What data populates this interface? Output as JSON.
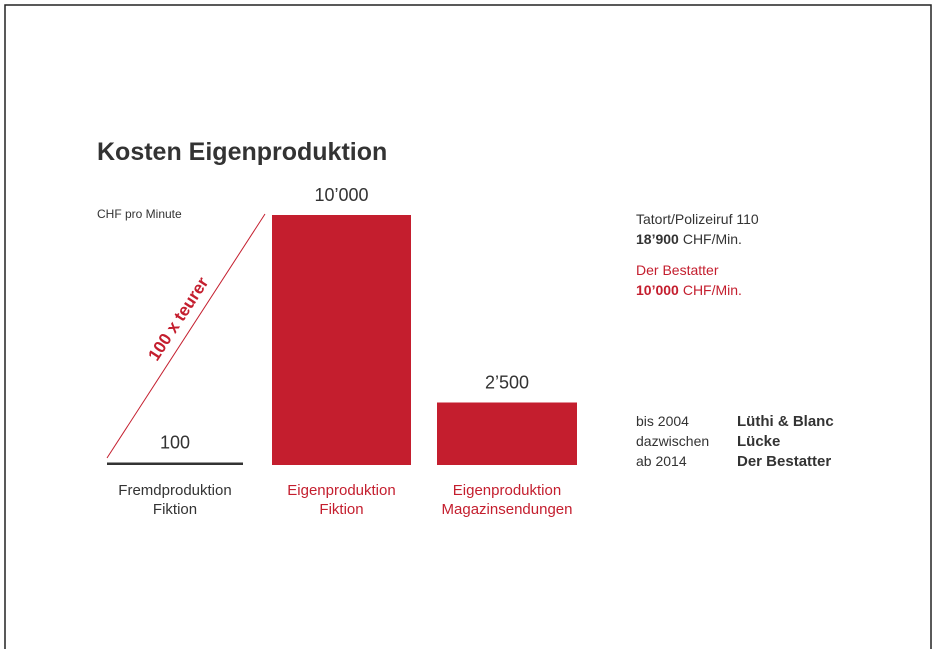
{
  "chart_data": {
    "type": "bar",
    "title": "Kosten Eigenproduktion",
    "unit_label": "CHF pro Minute",
    "annotation": "100 x teurer",
    "categories": [
      [
        "Fremdproduktion",
        "Fiktion"
      ],
      [
        "Eigenproduktion",
        "Fiktion"
      ],
      [
        "Eigenproduktion",
        "Magazinsendungen"
      ]
    ],
    "values": [
      100,
      10000,
      2500
    ],
    "value_labels": [
      "100",
      "10’000",
      "2’500"
    ],
    "colors": [
      "#333333",
      "#c41e2e",
      "#c41e2e"
    ],
    "side_notes": [
      {
        "title": "Tatort/Polizeiruf 110",
        "amount": "18’900",
        "unit": "CHF/Min.",
        "color": "#333333"
      },
      {
        "title": "Der Bestatter",
        "amount": "10’000",
        "unit": "CHF/Min.",
        "color": "#c41e2e"
      }
    ],
    "timeline": [
      [
        "bis 2004",
        "Lüthi & Blanc"
      ],
      [
        "dazwischen",
        "Lücke"
      ],
      [
        "ab 2014",
        "Der Bestatter"
      ]
    ]
  }
}
